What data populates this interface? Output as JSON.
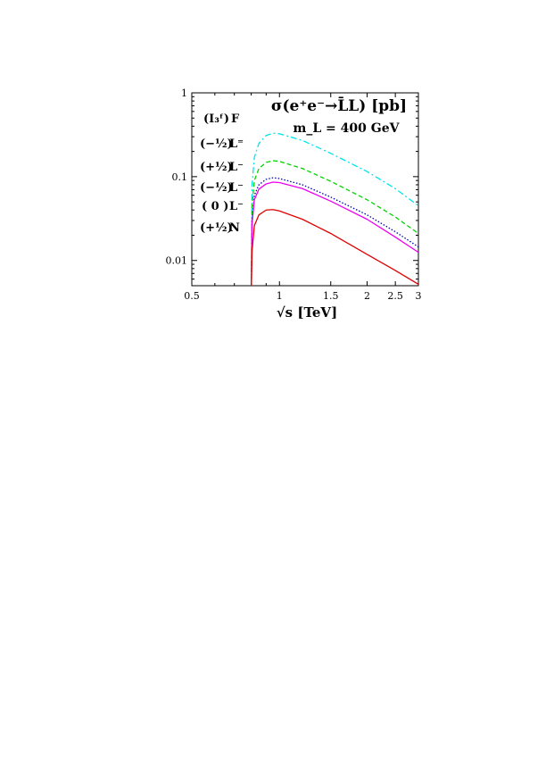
{
  "chart_data": {
    "type": "line",
    "title": "σ(e⁺e⁻→L̄L) [pb]",
    "subtitle": "m_L = 400 GeV",
    "xlabel": "√s [TeV]",
    "ylabel": "",
    "xscale": "log",
    "yscale": "log",
    "xlim": [
      0.5,
      3
    ],
    "ylim": [
      0.005,
      1
    ],
    "grid": false,
    "legend_placement": "left",
    "x_ticks": [
      {
        "value": 0.5,
        "label": "0.5"
      },
      {
        "value": 1,
        "label": "1"
      },
      {
        "value": 1.5,
        "label": "1.5"
      },
      {
        "value": 2,
        "label": "2"
      },
      {
        "value": 2.5,
        "label": "2.5"
      },
      {
        "value": 3,
        "label": "3"
      }
    ],
    "y_ticks": [
      {
        "value": 0.01,
        "label": "0.01"
      },
      {
        "value": 0.1,
        "label": "0.1"
      },
      {
        "value": 1,
        "label": "1"
      }
    ],
    "legend_header": {
      "i3": "(I₃ᶠ)",
      "particle": "F"
    },
    "series": [
      {
        "name": "(−½) L⁼",
        "i3": "(−½)",
        "particle": "L⁼",
        "color": "#00e5ee",
        "dash": "dashdot",
        "x": [
          0.8,
          0.805,
          0.82,
          0.85,
          0.9,
          0.95,
          1.0,
          1.2,
          1.5,
          2.0,
          2.5,
          3.0
        ],
        "y": [
          0.004,
          0.08,
          0.17,
          0.25,
          0.31,
          0.33,
          0.325,
          0.27,
          0.19,
          0.115,
          0.072,
          0.045
        ]
      },
      {
        "name": "(+½) L⁻",
        "i3": "(+½)",
        "particle": "L⁻",
        "color": "#00d400",
        "dash": "dashed",
        "x": [
          0.8,
          0.805,
          0.82,
          0.85,
          0.9,
          0.95,
          1.0,
          1.2,
          1.5,
          2.0,
          2.5,
          3.0
        ],
        "y": [
          0.004,
          0.045,
          0.09,
          0.125,
          0.148,
          0.155,
          0.152,
          0.125,
          0.088,
          0.053,
          0.033,
          0.021
        ]
      },
      {
        "name": "(−½) L⁻",
        "i3": "(−½)",
        "particle": "L⁻",
        "color": "#0000b0",
        "dash": "dotted",
        "x": [
          0.8,
          0.805,
          0.82,
          0.85,
          0.9,
          0.95,
          1.0,
          1.2,
          1.5,
          2.0,
          2.5,
          3.0
        ],
        "y": [
          0.004,
          0.03,
          0.06,
          0.08,
          0.093,
          0.097,
          0.095,
          0.08,
          0.057,
          0.035,
          0.022,
          0.0145
        ]
      },
      {
        "name": "( 0 ) L⁻",
        "i3": "( 0 )",
        "particle": "L⁻",
        "color": "#ee00ee",
        "dash": "solid",
        "x": [
          0.8,
          0.805,
          0.82,
          0.85,
          0.9,
          0.95,
          1.0,
          1.2,
          1.5,
          2.0,
          2.5,
          3.0
        ],
        "y": [
          0.004,
          0.027,
          0.053,
          0.071,
          0.082,
          0.086,
          0.085,
          0.072,
          0.051,
          0.031,
          0.019,
          0.0125
        ]
      },
      {
        "name": "(+½) N",
        "i3": "(+½)",
        "particle": "N",
        "color": "#e00000",
        "dash": "solid",
        "x": [
          0.8,
          0.805,
          0.82,
          0.85,
          0.9,
          0.95,
          1.0,
          1.2,
          1.5,
          2.0,
          2.5,
          3.0
        ],
        "y": [
          0.004,
          0.013,
          0.026,
          0.035,
          0.04,
          0.0405,
          0.039,
          0.031,
          0.021,
          0.0118,
          0.0076,
          0.0052
        ]
      }
    ]
  }
}
